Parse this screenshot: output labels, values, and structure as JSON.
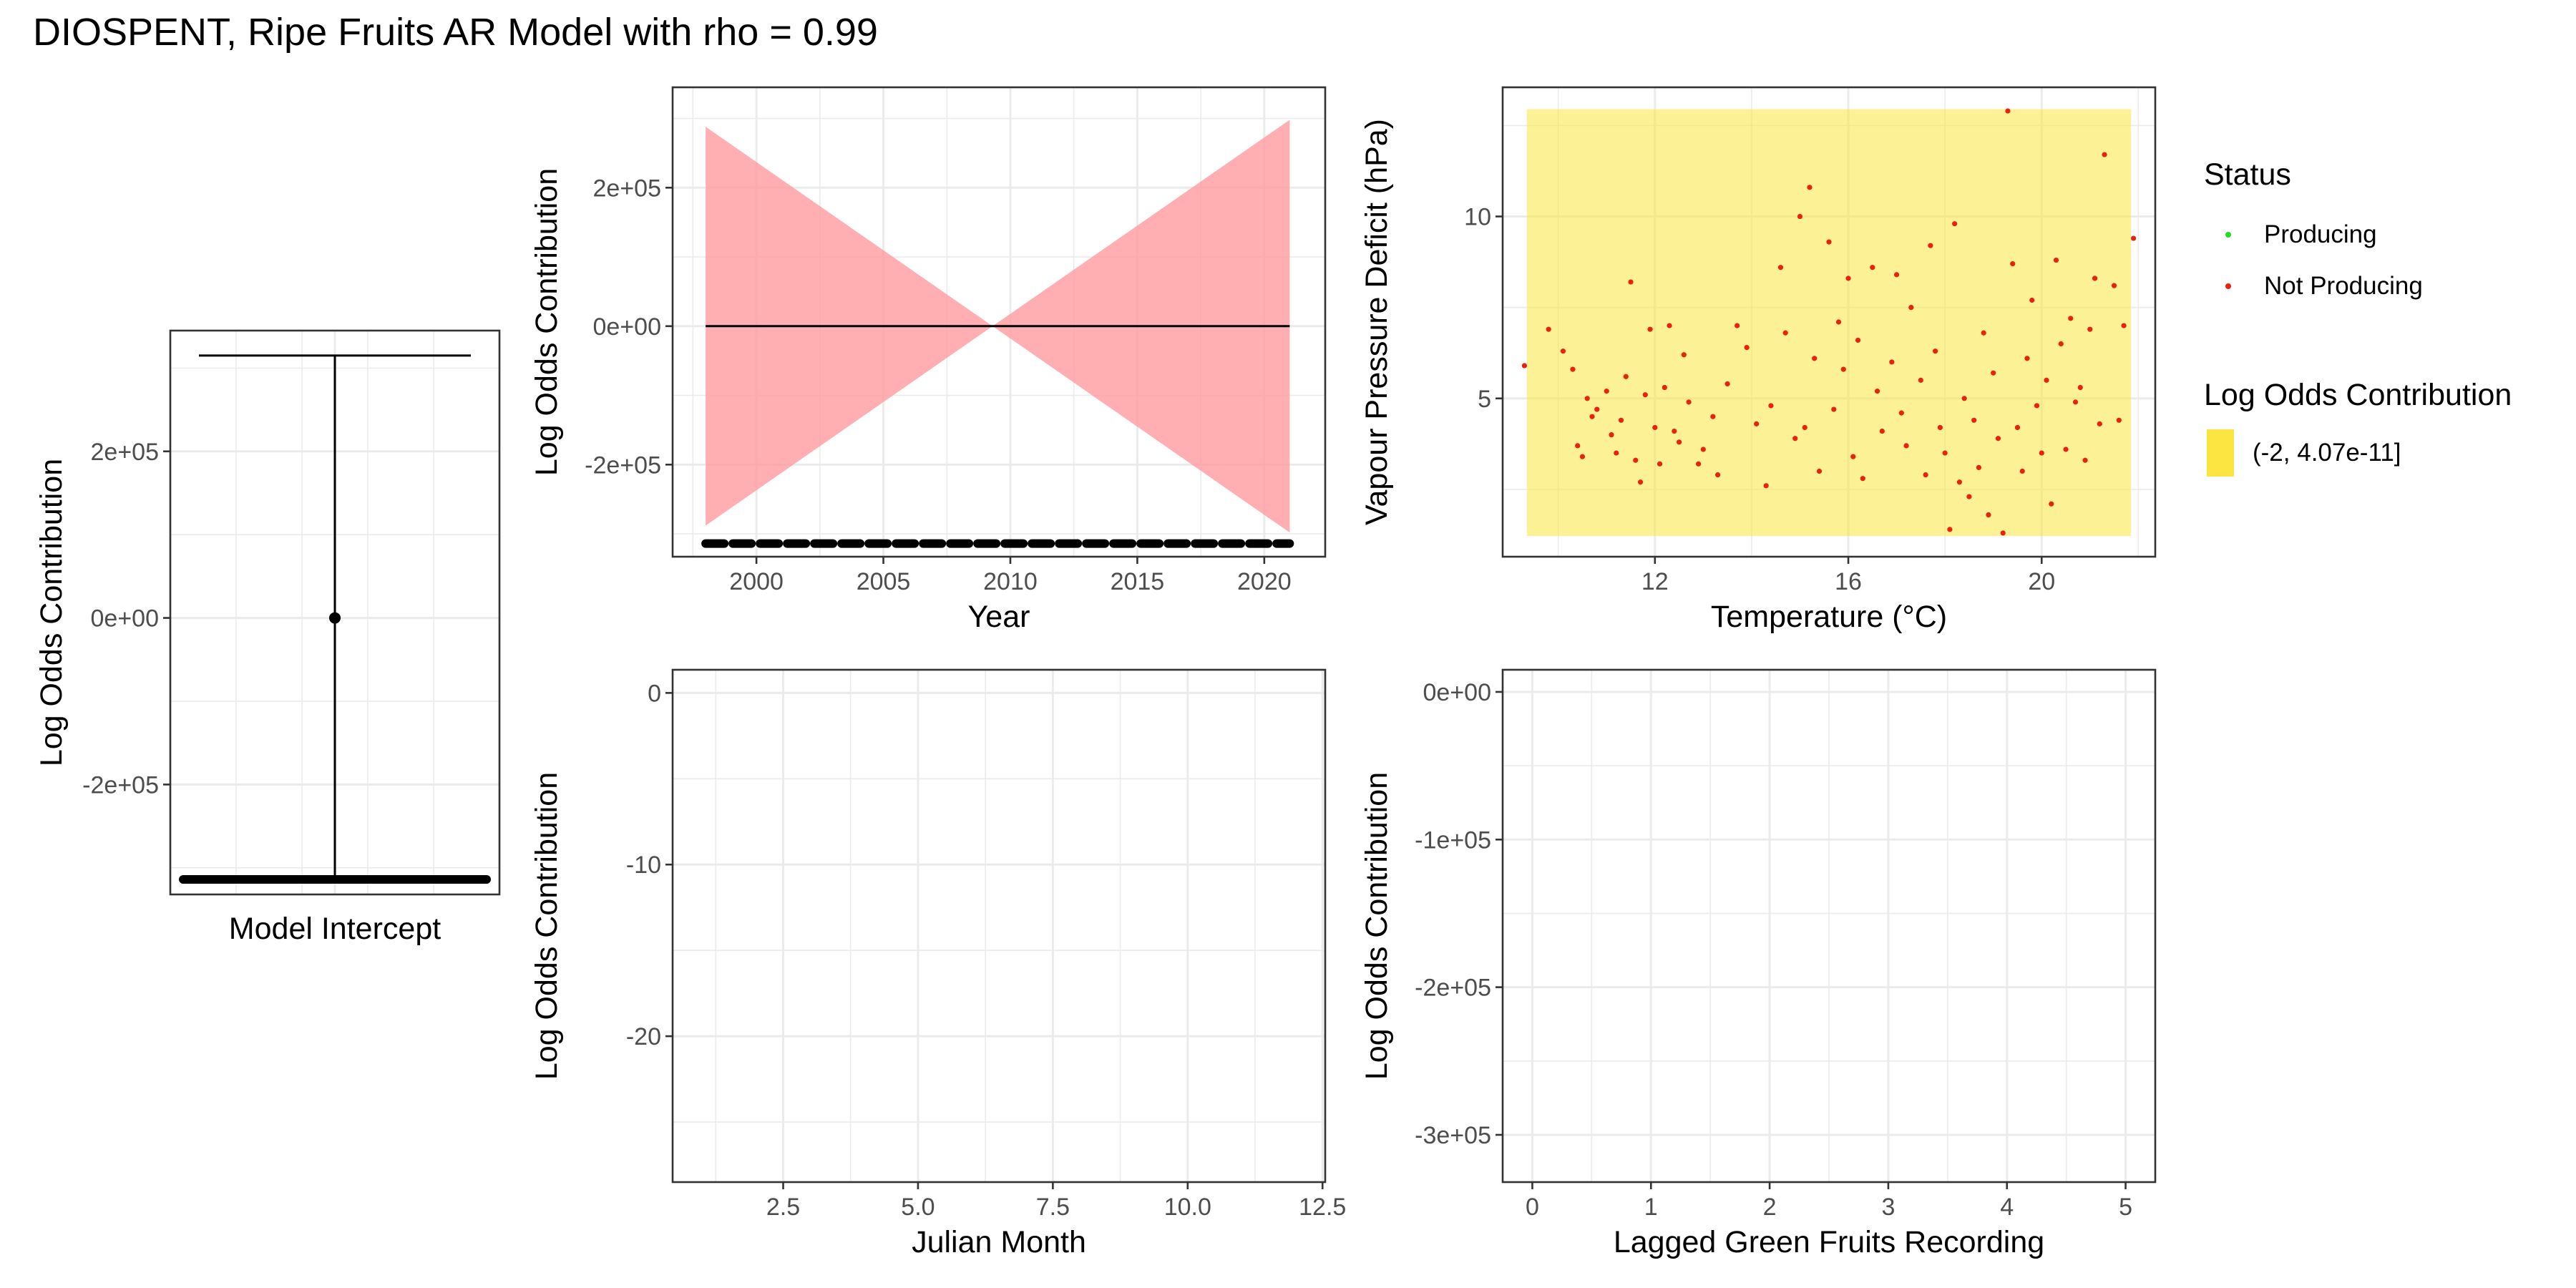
{
  "title": "DIOSPENT, Ripe Fruits AR Model with rho = 0.99",
  "colors": {
    "ribbon": "#ff9a9e",
    "fill_band": "#fce540",
    "producing": "#22dd22",
    "not_producing": "#e8220e",
    "grid": "#ebebeb",
    "line": "#000000"
  },
  "legend": {
    "status_title": "Status",
    "status_items": [
      {
        "label": "Producing",
        "color": "#22dd22"
      },
      {
        "label": "Not Producing",
        "color": "#e8220e"
      }
    ],
    "fill_title": "Log Odds Contribution",
    "fill_items": [
      {
        "label": "(-2, 4.07e-11]",
        "color": "#fce540"
      }
    ]
  },
  "chart_data": [
    {
      "id": "intercept",
      "type": "errorbar",
      "title": "",
      "xlabel": "Model Intercept",
      "ylabel": "Log Odds Contribution",
      "ylim": [
        -332000,
        345000
      ],
      "yticks": [
        -200000,
        0,
        200000
      ],
      "ytick_labels": [
        "-2e+05",
        "0e+00",
        "2e+05"
      ],
      "point": 0,
      "upper": 315000,
      "lower": -314000,
      "rug_y": -314000
    },
    {
      "id": "year",
      "type": "line",
      "title": "",
      "xlabel": "Year",
      "ylabel": "Log Odds Contribution",
      "xlim": [
        1996.7,
        2022.4
      ],
      "ylim": [
        -333000,
        345000
      ],
      "xticks": [
        2000,
        2005,
        2010,
        2015,
        2020
      ],
      "xtick_labels": [
        "2000",
        "2005",
        "2010",
        "2015",
        "2020"
      ],
      "yticks": [
        -200000,
        0,
        200000
      ],
      "ytick_labels": [
        "-2e+05",
        "0e+00",
        "2e+05"
      ],
      "fit": {
        "x": [
          1998,
          2021
        ],
        "y": [
          0,
          0
        ]
      },
      "ribbon": {
        "x": [
          1998,
          2009.3,
          2021
        ],
        "upper": [
          288000,
          0,
          298000
        ],
        "lower": [
          -288000,
          0,
          -298000
        ]
      },
      "rug": {
        "x_from": 1998,
        "x_to": 2021,
        "y": -314000
      }
    },
    {
      "id": "climate",
      "type": "scatter",
      "title": "",
      "xlabel": "Temperature (°C)",
      "ylabel": "Vapour Pressure Deficit (hPa)",
      "xlim": [
        8.85,
        22.35
      ],
      "ylim": [
        0.65,
        13.55
      ],
      "xticks": [
        12,
        16,
        20
      ],
      "xtick_labels": [
        "12",
        "16",
        "20"
      ],
      "yticks": [
        5,
        10
      ],
      "ytick_labels": [
        "5",
        "10"
      ],
      "fill_band": {
        "x": [
          9.35,
          21.85
        ],
        "y": [
          1.22,
          12.95
        ],
        "label": "(-2, 4.07e-11]"
      },
      "series": [
        {
          "name": "Not Producing",
          "points": [
            [
              9.3,
              5.9
            ],
            [
              9.8,
              6.9
            ],
            [
              10.1,
              6.3
            ],
            [
              10.3,
              5.8
            ],
            [
              10.4,
              3.7
            ],
            [
              10.5,
              3.4
            ],
            [
              10.6,
              5.0
            ],
            [
              10.7,
              4.5
            ],
            [
              10.8,
              4.7
            ],
            [
              11.0,
              5.2
            ],
            [
              11.1,
              4.0
            ],
            [
              11.2,
              3.5
            ],
            [
              11.3,
              4.4
            ],
            [
              11.4,
              5.6
            ],
            [
              11.5,
              8.2
            ],
            [
              11.6,
              3.3
            ],
            [
              11.7,
              2.7
            ],
            [
              11.8,
              5.1
            ],
            [
              11.9,
              6.9
            ],
            [
              12.0,
              4.2
            ],
            [
              12.1,
              3.2
            ],
            [
              12.2,
              5.3
            ],
            [
              12.3,
              7.0
            ],
            [
              12.4,
              4.1
            ],
            [
              12.5,
              3.8
            ],
            [
              12.6,
              6.2
            ],
            [
              12.7,
              4.9
            ],
            [
              12.9,
              3.2
            ],
            [
              13.0,
              3.6
            ],
            [
              13.2,
              4.5
            ],
            [
              13.3,
              2.9
            ],
            [
              13.5,
              5.4
            ],
            [
              13.7,
              7.0
            ],
            [
              13.9,
              6.4
            ],
            [
              14.1,
              4.3
            ],
            [
              14.3,
              2.6
            ],
            [
              14.4,
              4.8
            ],
            [
              14.6,
              8.6
            ],
            [
              14.7,
              6.8
            ],
            [
              14.9,
              3.9
            ],
            [
              15.0,
              10.0
            ],
            [
              15.1,
              4.2
            ],
            [
              15.2,
              10.8
            ],
            [
              15.3,
              6.1
            ],
            [
              15.4,
              3.0
            ],
            [
              15.6,
              9.3
            ],
            [
              15.7,
              4.7
            ],
            [
              15.8,
              7.1
            ],
            [
              15.9,
              5.8
            ],
            [
              16.0,
              8.3
            ],
            [
              16.1,
              3.4
            ],
            [
              16.2,
              6.6
            ],
            [
              16.3,
              2.8
            ],
            [
              16.5,
              8.6
            ],
            [
              16.6,
              5.2
            ],
            [
              16.7,
              4.1
            ],
            [
              16.9,
              6.0
            ],
            [
              17.0,
              8.4
            ],
            [
              17.1,
              4.6
            ],
            [
              17.2,
              3.7
            ],
            [
              17.3,
              7.5
            ],
            [
              17.5,
              5.5
            ],
            [
              17.6,
              2.9
            ],
            [
              17.7,
              9.2
            ],
            [
              17.8,
              6.3
            ],
            [
              17.9,
              4.2
            ],
            [
              18.0,
              3.5
            ],
            [
              18.1,
              1.4
            ],
            [
              18.2,
              9.8
            ],
            [
              18.3,
              2.7
            ],
            [
              18.4,
              5.0
            ],
            [
              18.5,
              2.3
            ],
            [
              18.6,
              4.4
            ],
            [
              18.7,
              3.1
            ],
            [
              18.8,
              6.8
            ],
            [
              18.9,
              1.8
            ],
            [
              19.0,
              5.7
            ],
            [
              19.1,
              3.9
            ],
            [
              19.2,
              1.3
            ],
            [
              19.3,
              12.9
            ],
            [
              19.4,
              8.7
            ],
            [
              19.5,
              4.2
            ],
            [
              19.6,
              3.0
            ],
            [
              19.7,
              6.1
            ],
            [
              19.8,
              7.7
            ],
            [
              19.9,
              4.8
            ],
            [
              20.0,
              3.5
            ],
            [
              20.1,
              5.5
            ],
            [
              20.2,
              2.1
            ],
            [
              20.3,
              8.8
            ],
            [
              20.4,
              6.5
            ],
            [
              20.5,
              3.6
            ],
            [
              20.6,
              7.2
            ],
            [
              20.7,
              4.9
            ],
            [
              20.8,
              5.3
            ],
            [
              20.9,
              3.3
            ],
            [
              21.0,
              6.9
            ],
            [
              21.1,
              8.3
            ],
            [
              21.2,
              4.3
            ],
            [
              21.3,
              11.7
            ],
            [
              21.5,
              8.1
            ],
            [
              21.6,
              4.4
            ],
            [
              21.7,
              7.0
            ],
            [
              21.9,
              9.4
            ]
          ]
        }
      ]
    },
    {
      "id": "julian",
      "type": "line",
      "title": "",
      "xlabel": "Julian Month",
      "ylabel": "Log Odds Contribution",
      "xlim": [
        0.45,
        12.55
      ],
      "ylim": [
        -28.5,
        1.35
      ],
      "xticks": [
        2.5,
        5.0,
        7.5,
        10.0,
        12.5
      ],
      "xtick_labels": [
        "2.5",
        "5.0",
        "7.5",
        "10.0",
        "12.5"
      ],
      "yticks": [
        -20,
        -10,
        0
      ],
      "ytick_labels": [
        "-20",
        "-10",
        "0"
      ]
    },
    {
      "id": "lagged",
      "type": "line",
      "title": "",
      "xlabel": "Lagged Green Fruits Recording",
      "ylabel": "Log Odds Contribution",
      "xlim": [
        -0.25,
        5.25
      ],
      "ylim": [
        -332000,
        15000
      ],
      "xticks": [
        0,
        1,
        2,
        3,
        4,
        5
      ],
      "xtick_labels": [
        "0",
        "1",
        "2",
        "3",
        "4",
        "5"
      ],
      "yticks": [
        -300000,
        -200000,
        -100000,
        0
      ],
      "ytick_labels": [
        "-3e+05",
        "-2e+05",
        "-1e+05",
        "0e+00"
      ]
    }
  ]
}
